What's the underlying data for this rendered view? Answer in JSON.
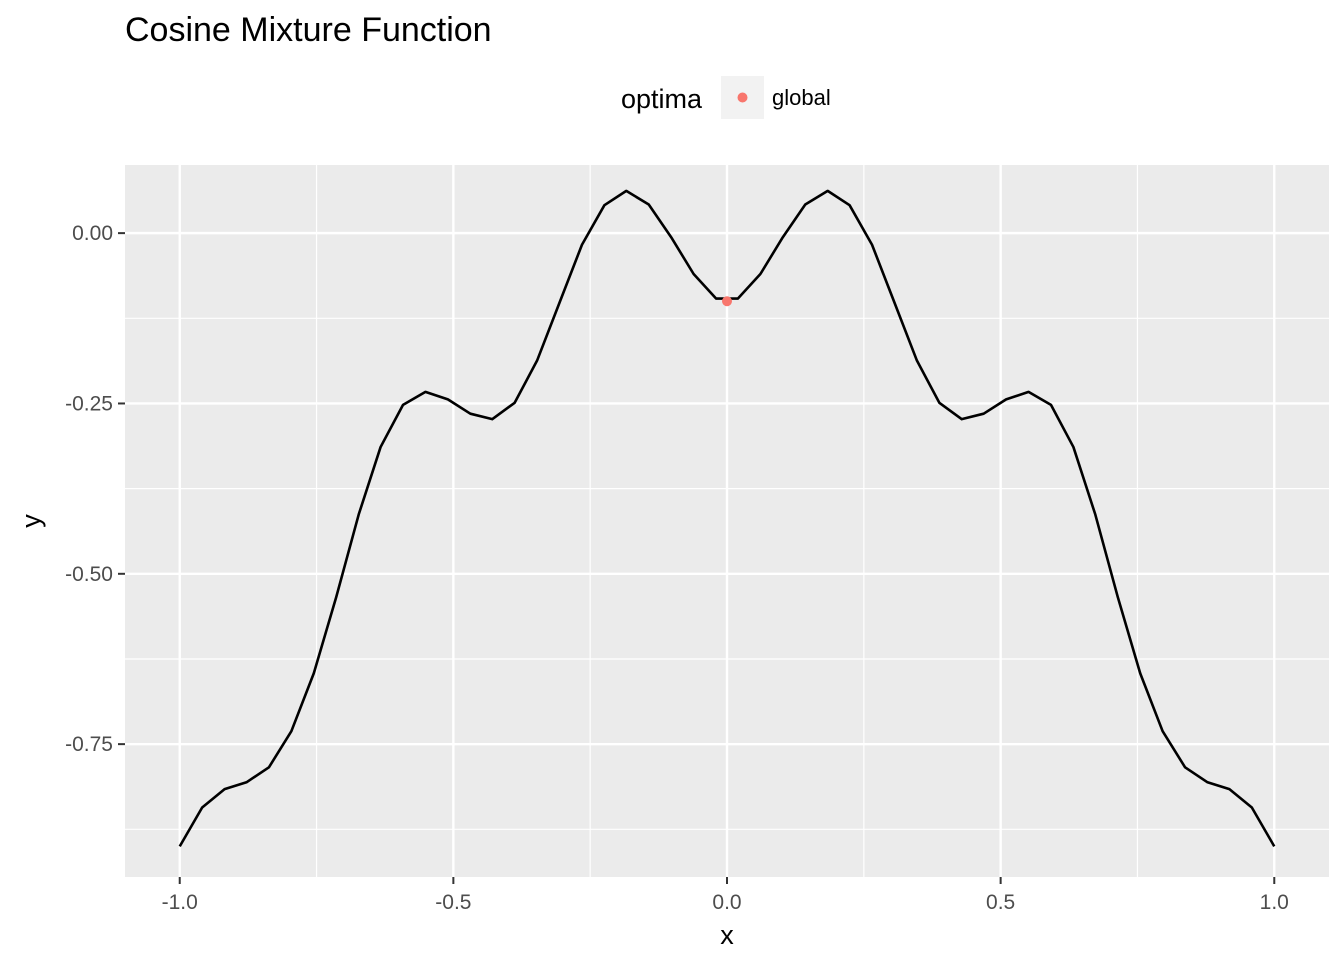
{
  "chart_data": {
    "type": "line",
    "title": "Cosine Mixture Function",
    "xlabel": "x",
    "ylabel": "y",
    "xlim": [
      -1.1,
      1.1
    ],
    "ylim": [
      -0.945,
      0.1
    ],
    "x_ticks": [
      {
        "value": -1.0,
        "label": "-1.0"
      },
      {
        "value": -0.5,
        "label": "-0.5"
      },
      {
        "value": 0.0,
        "label": "0.0"
      },
      {
        "value": 0.5,
        "label": "0.5"
      },
      {
        "value": 1.0,
        "label": "1.0"
      }
    ],
    "y_ticks": [
      {
        "value": 0.0,
        "label": "0.00"
      },
      {
        "value": -0.25,
        "label": "-0.25"
      },
      {
        "value": -0.5,
        "label": "-0.50"
      },
      {
        "value": -0.75,
        "label": "-0.75"
      }
    ],
    "x_minor": [
      -0.75,
      -0.25,
      0.25,
      0.75
    ],
    "y_minor": [
      -0.125,
      -0.375,
      -0.625,
      -0.875
    ],
    "grid": true,
    "legend": {
      "title": "optima",
      "position": "top",
      "entries": [
        {
          "label": "global",
          "color": "#F8766D"
        }
      ]
    },
    "series": [
      {
        "color": "#000000",
        "x": [
          -1.0,
          -0.959,
          -0.918,
          -0.878,
          -0.837,
          -0.796,
          -0.755,
          -0.714,
          -0.673,
          -0.633,
          -0.592,
          -0.551,
          -0.51,
          -0.469,
          -0.429,
          -0.388,
          -0.347,
          -0.306,
          -0.265,
          -0.224,
          -0.184,
          -0.143,
          -0.102,
          -0.061,
          -0.02,
          0.02,
          0.061,
          0.102,
          0.143,
          0.184,
          0.224,
          0.265,
          0.306,
          0.347,
          0.388,
          0.429,
          0.469,
          0.51,
          0.551,
          0.592,
          0.633,
          0.673,
          0.714,
          0.755,
          0.796,
          0.837,
          0.878,
          0.918,
          0.959,
          1.0
        ],
        "y": [
          -0.9,
          -0.843,
          -0.816,
          -0.806,
          -0.784,
          -0.731,
          -0.646,
          -0.534,
          -0.413,
          -0.314,
          -0.252,
          -0.233,
          -0.244,
          -0.265,
          -0.273,
          -0.249,
          -0.187,
          -0.102,
          -0.017,
          0.041,
          0.062,
          0.042,
          -0.006,
          -0.06,
          -0.096,
          -0.096,
          -0.06,
          -0.006,
          0.042,
          0.062,
          0.041,
          -0.017,
          -0.102,
          -0.187,
          -0.249,
          -0.273,
          -0.265,
          -0.244,
          -0.233,
          -0.252,
          -0.314,
          -0.413,
          -0.534,
          -0.646,
          -0.731,
          -0.784,
          -0.806,
          -0.816,
          -0.843,
          -0.9
        ]
      }
    ],
    "points": [
      {
        "x": 0.0,
        "y": -0.1,
        "label": "global",
        "color": "#F8766D"
      }
    ],
    "colors": {
      "panel": "#EBEBEB",
      "grid": "#FFFFFF",
      "line": "#000000",
      "point": "#F8766D",
      "legend_key": "#F2F2F2"
    }
  }
}
